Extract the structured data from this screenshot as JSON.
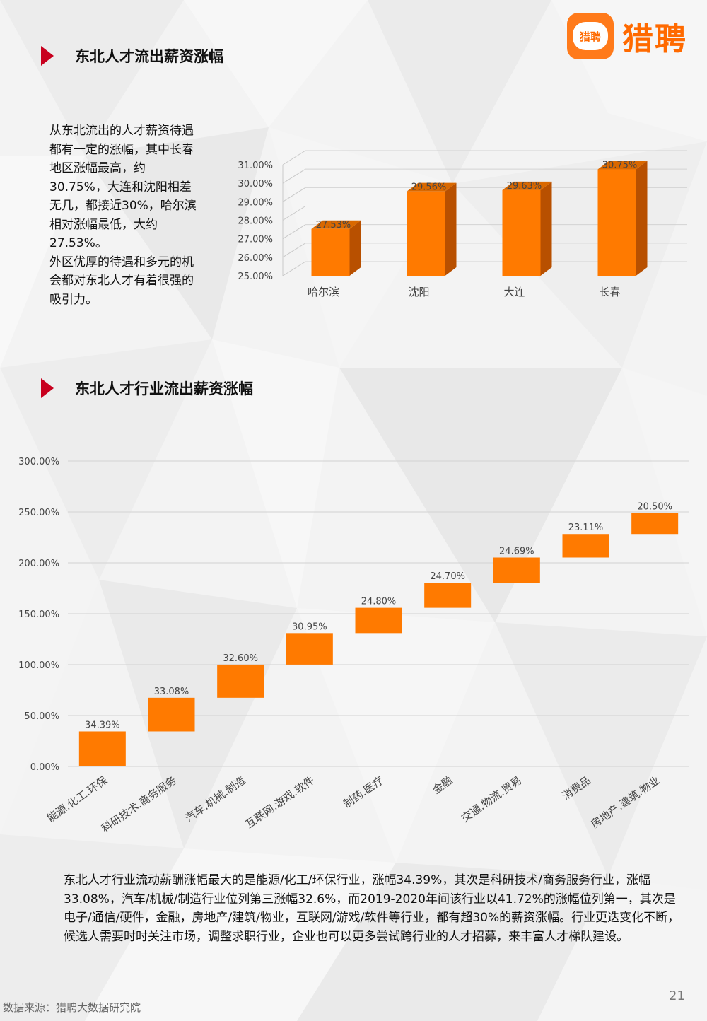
{
  "header": {
    "logo_badge_text": "猎聘",
    "logo_text": "猎聘"
  },
  "section1": {
    "title": "东北人才流出薪资涨幅",
    "paragraph": [
      "从东北流出的人才薪资待遇都有一定的涨幅，其中长春地区涨幅最高，约30.75%，大连和沈阳相差无几，都接近30%，哈尔滨相对涨幅最低，大约27.53%。",
      "外区优厚的待遇和多元的机会都对东北人才有着很强的吸引力。"
    ]
  },
  "section2": {
    "title": "东北人才行业流出薪资涨幅",
    "paragraph": "东北人才行业流动薪酬涨幅最大的是能源/化工/环保行业，涨幅34.39%，其次是科研技术/商务服务行业，涨幅33.08%，汽车/机械/制造行业位列第三涨幅32.6%，而2019-2020年间该行业以41.72%的涨幅位列第一，其次是电子/通信/硬件，金融，房地产/建筑/物业，互联网/游戏/软件等行业，都有超30%的薪资涨幅。行业更迭变化不断，候选人需要时时关注市场，调整求职行业，企业也可以更多尝试跨行业的人才招募，来丰富人才梯队建设。"
  },
  "colors": {
    "bar_front": "#ff7a00",
    "bar_side": "#b85000",
    "bar_top": "#d96800",
    "accent_red": "#c8001e",
    "brand_orange": "#ff6a00"
  },
  "chart_data": [
    {
      "type": "bar",
      "style": "3d",
      "categories": [
        "哈尔滨",
        "沈阳",
        "大连",
        "长春"
      ],
      "values": [
        27.53,
        29.56,
        29.63,
        30.75
      ],
      "value_labels": [
        "27.53%",
        "29.56%",
        "29.63%",
        "30.75%"
      ],
      "yticks": [
        "25.00%",
        "26.00%",
        "27.00%",
        "28.00%",
        "29.00%",
        "30.00%",
        "31.00%"
      ],
      "ylim": [
        25,
        31
      ],
      "grid": true
    },
    {
      "type": "bar",
      "style": "waterfall",
      "categories": [
        "能源.化工.环保",
        "科研技术.商务服务",
        "汽车.机械.制造",
        "互联网.游戏.软件",
        "制药.医疗",
        "金融",
        "交通.物流.贸易",
        "消费品",
        "房地产.建筑.物业"
      ],
      "values": [
        34.39,
        33.08,
        32.6,
        30.95,
        24.8,
        24.7,
        24.69,
        23.11,
        20.5
      ],
      "value_labels": [
        "34.39%",
        "33.08%",
        "32.60%",
        "30.95%",
        "24.80%",
        "24.70%",
        "24.69%",
        "23.11%",
        "20.50%"
      ],
      "yticks": [
        "0.00%",
        "50.00%",
        "100.00%",
        "150.00%",
        "200.00%",
        "250.00%",
        "300.00%"
      ],
      "ylim": [
        0,
        300
      ],
      "grid": true
    }
  ],
  "footer": {
    "source": "数据来源：猎聘大数据研究院",
    "page": "21"
  }
}
